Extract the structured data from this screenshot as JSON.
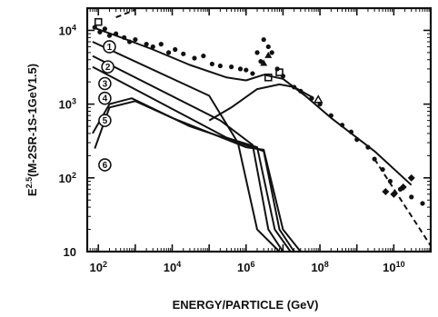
{
  "chart_data": {
    "type": "line",
    "title": "",
    "xlabel": "ENERGY/PARTICLE (GeV)",
    "ylabel": "E^{2.5}(M-2SR-1S-1GeV1.5)",
    "ylabel_parts": {
      "main": "E",
      "sup": "2.5",
      "rest": "(M-2SR-1S-1GeV1.5)"
    },
    "x_scale": "log",
    "y_scale": "log",
    "xlim": [
      50,
      100000000000
    ],
    "ylim": [
      10,
      20000
    ],
    "x_ticks": [
      {
        "value": 100,
        "base": "10",
        "exp": "2"
      },
      {
        "value": 10000,
        "base": "10",
        "exp": "4"
      },
      {
        "value": 1000000,
        "base": "10",
        "exp": "6"
      },
      {
        "value": 100000000,
        "base": "10",
        "exp": "8"
      },
      {
        "value": 10000000000,
        "base": "10",
        "exp": "10"
      }
    ],
    "y_ticks": [
      {
        "value": 10,
        "base": "10",
        "exp": ""
      },
      {
        "value": 100,
        "base": "10",
        "exp": "2"
      },
      {
        "value": 1000,
        "base": "10",
        "exp": "3"
      },
      {
        "value": 10000,
        "base": "10",
        "exp": "4"
      }
    ],
    "component_labels": [
      {
        "x": 200,
        "y": 6000,
        "text": "1"
      },
      {
        "x": 180,
        "y": 3200,
        "text": "2"
      },
      {
        "x": 150,
        "y": 1900,
        "text": "3"
      },
      {
        "x": 150,
        "y": 1200,
        "text": "4"
      },
      {
        "x": 150,
        "y": 600,
        "text": "5"
      },
      {
        "x": 150,
        "y": 150,
        "text": "6"
      }
    ],
    "series": [
      {
        "style": "solid",
        "x": [
          70,
          300,
          3000,
          30000,
          300000,
          1000000,
          3000000,
          10000000,
          40000000,
          200000000,
          3000000000,
          30000000000
        ],
        "y": [
          11000,
          8500,
          5500,
          3400,
          2300,
          2100,
          2500,
          2200,
          1300,
          650,
          230,
          80
        ]
      },
      {
        "style": "solid",
        "x": [
          70,
          100000,
          600000,
          2000000,
          8000000
        ],
        "y": [
          7000,
          1300,
          300,
          20,
          10
        ]
      },
      {
        "style": "solid",
        "x": [
          70,
          200000,
          1500000,
          4000000,
          10000000
        ],
        "y": [
          4500,
          600,
          280,
          20,
          10
        ]
      },
      {
        "style": "solid",
        "x": [
          70,
          300000,
          2000000,
          6000000,
          16000000
        ],
        "y": [
          3200,
          350,
          260,
          20,
          10
        ]
      },
      {
        "style": "solid",
        "x": [
          70,
          200,
          800,
          30000,
          3000000,
          8000000,
          20000000
        ],
        "y": [
          400,
          1000,
          1200,
          500,
          230,
          20,
          10
        ]
      },
      {
        "style": "solid",
        "x": [
          80,
          200,
          1000,
          10000,
          1000000,
          3000000,
          10000000,
          30000000
        ],
        "y": [
          250,
          900,
          1100,
          650,
          260,
          240,
          20,
          10
        ]
      },
      {
        "style": "solid",
        "x": [
          100000,
          400000,
          2000000,
          8000000,
          20000000,
          60000000
        ],
        "y": [
          600,
          900,
          1600,
          1850,
          1700,
          1250
        ]
      },
      {
        "style": "dashed",
        "x": [
          300,
          1000
        ],
        "y": [
          15000,
          19000
        ]
      },
      {
        "style": "dashed",
        "x": [
          3000000000,
          100000000000
        ],
        "y": [
          180,
          12
        ]
      }
    ],
    "markers": {
      "dots": [
        [
          80,
          11000
        ],
        [
          110,
          9500
        ],
        [
          150,
          10500
        ],
        [
          200,
          8500
        ],
        [
          300,
          9000
        ],
        [
          500,
          8000
        ],
        [
          700,
          7000
        ],
        [
          1000,
          7500
        ],
        [
          2000,
          6500
        ],
        [
          3000,
          6000
        ],
        [
          5000,
          6500
        ],
        [
          8000,
          5000
        ],
        [
          12000,
          5500
        ],
        [
          20000,
          4800
        ],
        [
          40000,
          4200
        ],
        [
          70000,
          4500
        ],
        [
          120000,
          3500
        ],
        [
          200000,
          3300
        ],
        [
          400000,
          3200
        ],
        [
          700000,
          3000
        ],
        [
          1000000,
          2900
        ],
        [
          1500000,
          2600
        ],
        [
          2000000,
          5000
        ],
        [
          2500000,
          3800
        ],
        [
          3000000,
          7500
        ],
        [
          4000000,
          6000
        ],
        [
          5000000,
          5000
        ],
        [
          7000000,
          3000
        ],
        [
          10000000,
          2400
        ],
        [
          20000000,
          1700
        ],
        [
          30000000,
          1500
        ],
        [
          60000000,
          1200
        ],
        [
          100000000,
          1000
        ],
        [
          200000000,
          700
        ],
        [
          400000000,
          520
        ],
        [
          700000000,
          420
        ],
        [
          1000000000,
          330
        ],
        [
          2000000000,
          260
        ],
        [
          3000000000,
          180
        ],
        [
          5000000000,
          130
        ],
        [
          8000000000,
          90
        ],
        [
          15000000000,
          70
        ],
        [
          30000000000,
          55
        ],
        [
          60000000000,
          45
        ]
      ],
      "squares": [
        [
          100,
          13000
        ],
        [
          4000000,
          2300
        ],
        [
          8000000,
          2700
        ]
      ],
      "triangles": [
        [
          3000000,
          3600
        ],
        [
          4000000,
          4600
        ]
      ],
      "open_triangles": [
        [
          90000000,
          1150
        ]
      ],
      "diamonds": [
        [
          6000000000,
          65
        ],
        [
          10000000000,
          60
        ],
        [
          18000000000,
          75
        ],
        [
          30000000000,
          100
        ]
      ]
    }
  }
}
